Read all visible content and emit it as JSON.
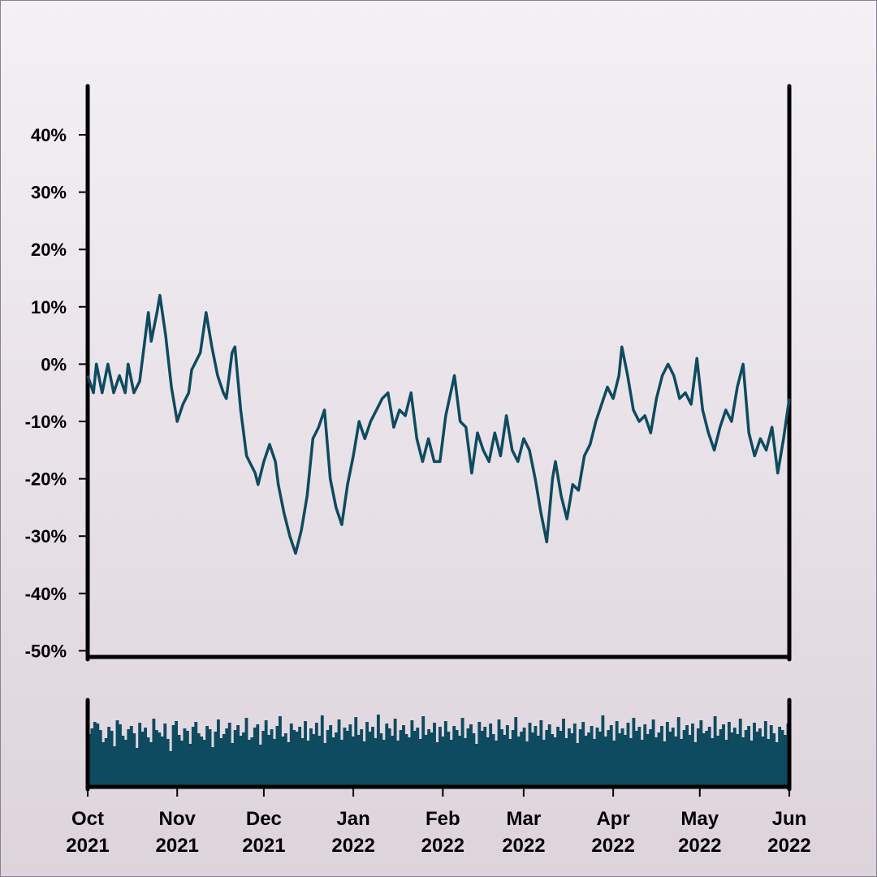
{
  "chart_data": [
    {
      "type": "line",
      "title": "",
      "xlabel": "",
      "ylabel": "",
      "ylim": [
        -50,
        50
      ],
      "y_ticks": [
        {
          "value": 40,
          "label": "40%"
        },
        {
          "value": 30,
          "label": "30%"
        },
        {
          "value": 20,
          "label": "20%"
        },
        {
          "value": 10,
          "label": "10%"
        },
        {
          "value": 0,
          "label": "0%"
        },
        {
          "value": -10,
          "label": "-10%"
        },
        {
          "value": -20,
          "label": "-20%"
        },
        {
          "value": -30,
          "label": "-30%"
        },
        {
          "value": -40,
          "label": "-40%"
        },
        {
          "value": -50,
          "label": "-50%"
        }
      ],
      "x_range": [
        "2021-10-01",
        "2022-06-01"
      ],
      "x_ticks": [
        {
          "date": "2021-10-01",
          "month": "Oct",
          "year": "2021"
        },
        {
          "date": "2021-11-01",
          "month": "Nov",
          "year": "2021"
        },
        {
          "date": "2021-12-01",
          "month": "Dec",
          "year": "2021"
        },
        {
          "date": "2022-01-01",
          "month": "Jan",
          "year": "2022"
        },
        {
          "date": "2022-02-01",
          "month": "Feb",
          "year": "2022"
        },
        {
          "date": "2022-03-01",
          "month": "Mar",
          "year": "2022"
        },
        {
          "date": "2022-04-01",
          "month": "Apr",
          "year": "2022"
        },
        {
          "date": "2022-05-01",
          "month": "May",
          "year": "2022"
        },
        {
          "date": "2022-06-01",
          "month": "Jun",
          "year": "2022"
        }
      ],
      "grid": false,
      "color": "#0e4a60",
      "series": [
        {
          "points": [
            [
              "2021-10-01",
              -2
            ],
            [
              "2021-10-03",
              -5
            ],
            [
              "2021-10-04",
              0
            ],
            [
              "2021-10-06",
              -5
            ],
            [
              "2021-10-08",
              0
            ],
            [
              "2021-10-10",
              -5
            ],
            [
              "2021-10-12",
              -2
            ],
            [
              "2021-10-14",
              -5
            ],
            [
              "2021-10-15",
              0
            ],
            [
              "2021-10-17",
              -5
            ],
            [
              "2021-10-19",
              -3
            ],
            [
              "2021-10-21",
              5
            ],
            [
              "2021-10-22",
              9
            ],
            [
              "2021-10-23",
              4
            ],
            [
              "2021-10-25",
              9
            ],
            [
              "2021-10-26",
              12
            ],
            [
              "2021-10-28",
              5
            ],
            [
              "2021-10-30",
              -4
            ],
            [
              "2021-11-01",
              -10
            ],
            [
              "2021-11-03",
              -7
            ],
            [
              "2021-11-05",
              -5
            ],
            [
              "2021-11-06",
              -1
            ],
            [
              "2021-11-07",
              0
            ],
            [
              "2021-11-09",
              2
            ],
            [
              "2021-11-11",
              9
            ],
            [
              "2021-11-13",
              3
            ],
            [
              "2021-11-15",
              -2
            ],
            [
              "2021-11-17",
              -5
            ],
            [
              "2021-11-18",
              -6
            ],
            [
              "2021-11-20",
              2
            ],
            [
              "2021-11-21",
              3
            ],
            [
              "2021-11-23",
              -8
            ],
            [
              "2021-11-25",
              -16
            ],
            [
              "2021-11-26",
              -17
            ],
            [
              "2021-11-28",
              -19
            ],
            [
              "2021-11-29",
              -21
            ],
            [
              "2021-12-01",
              -17
            ],
            [
              "2021-12-03",
              -14
            ],
            [
              "2021-12-05",
              -17
            ],
            [
              "2021-12-06",
              -21
            ],
            [
              "2021-12-08",
              -26
            ],
            [
              "2021-12-10",
              -30
            ],
            [
              "2021-12-12",
              -33
            ],
            [
              "2021-12-14",
              -29
            ],
            [
              "2021-12-16",
              -23
            ],
            [
              "2021-12-18",
              -13
            ],
            [
              "2021-12-20",
              -11
            ],
            [
              "2021-12-22",
              -8
            ],
            [
              "2021-12-24",
              -20
            ],
            [
              "2021-12-26",
              -25
            ],
            [
              "2021-12-28",
              -28
            ],
            [
              "2021-12-30",
              -21
            ],
            [
              "2022-01-01",
              -16
            ],
            [
              "2022-01-03",
              -10
            ],
            [
              "2022-01-05",
              -13
            ],
            [
              "2022-01-07",
              -10
            ],
            [
              "2022-01-09",
              -8
            ],
            [
              "2022-01-11",
              -6
            ],
            [
              "2022-01-13",
              -5
            ],
            [
              "2022-01-15",
              -11
            ],
            [
              "2022-01-17",
              -8
            ],
            [
              "2022-01-19",
              -9
            ],
            [
              "2022-01-21",
              -5
            ],
            [
              "2022-01-23",
              -13
            ],
            [
              "2022-01-25",
              -17
            ],
            [
              "2022-01-27",
              -13
            ],
            [
              "2022-01-29",
              -17
            ],
            [
              "2022-01-31",
              -17
            ],
            [
              "2022-02-02",
              -9
            ],
            [
              "2022-02-05",
              -2
            ],
            [
              "2022-02-07",
              -10
            ],
            [
              "2022-02-09",
              -11
            ],
            [
              "2022-02-11",
              -19
            ],
            [
              "2022-02-13",
              -12
            ],
            [
              "2022-02-15",
              -15
            ],
            [
              "2022-02-17",
              -17
            ],
            [
              "2022-02-19",
              -12
            ],
            [
              "2022-02-21",
              -16
            ],
            [
              "2022-02-23",
              -9
            ],
            [
              "2022-02-25",
              -15
            ],
            [
              "2022-02-27",
              -17
            ],
            [
              "2022-03-01",
              -13
            ],
            [
              "2022-03-03",
              -15
            ],
            [
              "2022-03-05",
              -20
            ],
            [
              "2022-03-07",
              -26
            ],
            [
              "2022-03-09",
              -31
            ],
            [
              "2022-03-11",
              -20
            ],
            [
              "2022-03-12",
              -17
            ],
            [
              "2022-03-14",
              -23
            ],
            [
              "2022-03-16",
              -27
            ],
            [
              "2022-03-18",
              -21
            ],
            [
              "2022-03-20",
              -22
            ],
            [
              "2022-03-22",
              -16
            ],
            [
              "2022-03-24",
              -14
            ],
            [
              "2022-03-26",
              -10
            ],
            [
              "2022-03-28",
              -7
            ],
            [
              "2022-03-30",
              -4
            ],
            [
              "2022-04-01",
              -6
            ],
            [
              "2022-04-03",
              -2
            ],
            [
              "2022-04-04",
              3
            ],
            [
              "2022-04-06",
              -2
            ],
            [
              "2022-04-08",
              -8
            ],
            [
              "2022-04-10",
              -10
            ],
            [
              "2022-04-12",
              -9
            ],
            [
              "2022-04-14",
              -12
            ],
            [
              "2022-04-16",
              -6
            ],
            [
              "2022-04-18",
              -2
            ],
            [
              "2022-04-20",
              0
            ],
            [
              "2022-04-22",
              -2
            ],
            [
              "2022-04-24",
              -6
            ],
            [
              "2022-04-26",
              -5
            ],
            [
              "2022-04-28",
              -7
            ],
            [
              "2022-04-30",
              1
            ],
            [
              "2022-05-02",
              -8
            ],
            [
              "2022-05-04",
              -12
            ],
            [
              "2022-05-06",
              -15
            ],
            [
              "2022-05-08",
              -11
            ],
            [
              "2022-05-10",
              -8
            ],
            [
              "2022-05-12",
              -10
            ],
            [
              "2022-05-14",
              -4
            ],
            [
              "2022-05-16",
              0
            ],
            [
              "2022-05-18",
              -12
            ],
            [
              "2022-05-20",
              -16
            ],
            [
              "2022-05-22",
              -13
            ],
            [
              "2022-05-24",
              -15
            ],
            [
              "2022-05-26",
              -11
            ],
            [
              "2022-05-28",
              -19
            ],
            [
              "2022-05-30",
              -13
            ],
            [
              "2022-06-01",
              -6
            ]
          ]
        }
      ]
    },
    {
      "type": "bar",
      "title": "",
      "xlabel": "",
      "ylabel": "",
      "ylim": [
        0,
        100
      ],
      "x_range": [
        "2021-10-01",
        "2022-06-01"
      ],
      "color": "#0e4a60",
      "values": [
        65,
        72,
        80,
        78,
        70,
        55,
        60,
        74,
        69,
        50,
        82,
        77,
        63,
        58,
        71,
        75,
        66,
        48,
        79,
        68,
        73,
        61,
        55,
        84,
        70,
        67,
        62,
        78,
        59,
        44,
        76,
        81,
        64,
        57,
        72,
        69,
        53,
        74,
        80,
        66,
        62,
        58,
        75,
        71,
        49,
        68,
        83,
        60,
        65,
        72,
        79,
        54,
        70,
        76,
        63,
        67,
        85,
        58,
        61,
        73,
        77,
        52,
        69,
        82,
        64,
        71,
        59,
        75,
        87,
        62,
        66,
        55,
        78,
        70,
        68,
        74,
        60,
        81,
        57,
        72,
        65,
        79,
        63,
        88,
        54,
        70,
        76,
        61,
        67,
        83,
        58,
        73,
        69,
        77,
        62,
        86,
        64,
        71,
        56,
        80,
        68,
        74,
        60,
        89,
        66,
        58,
        78,
        72,
        63,
        84,
        57,
        70,
        76,
        65,
        61,
        82,
        69,
        73,
        59,
        87,
        64,
        71,
        67,
        79,
        55,
        74,
        62,
        81,
        68,
        58,
        75,
        70,
        63,
        85,
        60,
        72,
        77,
        66,
        53,
        80,
        69,
        74,
        61,
        78,
        65,
        57,
        83,
        71,
        64,
        76,
        59,
        70,
        86,
        62,
        68,
        73,
        56,
        79,
        67,
        75,
        63,
        82,
        58,
        70,
        77,
        65,
        61,
        74,
        69,
        84,
        60,
        72,
        66,
        78,
        54,
        71,
        80,
        63,
        67,
        75,
        59,
        73,
        68,
        88,
        62,
        70,
        76,
        57,
        81,
        66,
        72,
        64,
        79,
        60,
        85,
        69,
        74,
        58,
        77,
        65,
        71,
        83,
        61,
        67,
        75,
        56,
        80,
        68,
        73,
        62,
        86,
        59,
        70,
        76,
        64,
        78,
        55,
        72,
        82,
        66,
        69,
        74,
        60,
        87,
        63,
        71,
        77,
        58,
        80,
        67,
        73,
        65,
        84,
        61,
        70,
        75,
        57,
        79,
        68,
        72,
        62,
        81,
        59,
        76,
        66,
        55,
        74,
        70,
        64,
        78
      ]
    }
  ]
}
